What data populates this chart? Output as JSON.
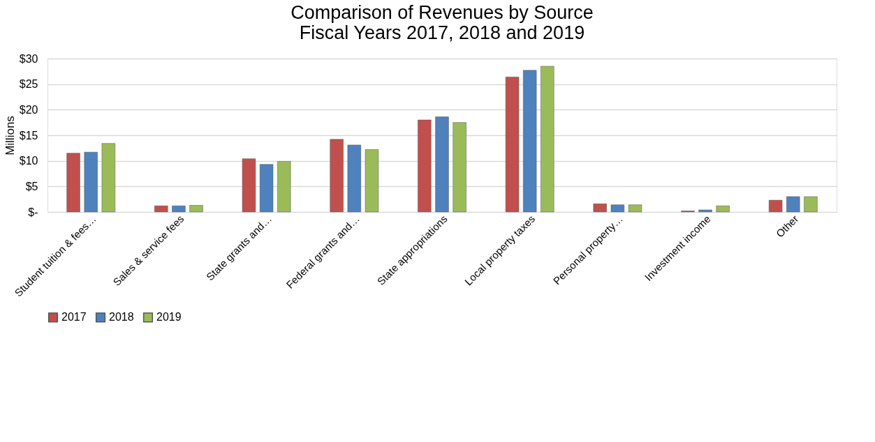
{
  "chart_data": {
    "type": "bar",
    "title": [
      "Comparison of Revenues by Source",
      "Fiscal Years 2017, 2018 and 2019"
    ],
    "ylabel": "Millions",
    "categories": [
      "Student tuition & fees…",
      "Sales & service fees",
      "State grants and…",
      "Federal grants and…",
      "State appropriations",
      "Local property taxes",
      "Personal property…",
      "Investment income",
      "Other"
    ],
    "series": [
      {
        "name": "2017",
        "color": "#c0504d",
        "values": [
          11.5,
          1.2,
          10.4,
          14.2,
          18.0,
          26.4,
          1.6,
          0.2,
          2.3
        ]
      },
      {
        "name": "2018",
        "color": "#4f81bd",
        "values": [
          11.7,
          1.2,
          9.3,
          13.1,
          18.6,
          27.7,
          1.4,
          0.4,
          3.0
        ]
      },
      {
        "name": "2019",
        "color": "#9bbb59",
        "values": [
          13.4,
          1.3,
          9.9,
          12.2,
          17.5,
          28.5,
          1.4,
          1.2,
          3.0
        ]
      }
    ],
    "ylim": [
      0,
      30
    ],
    "yticks": [
      {
        "value": 0,
        "label": "$-"
      },
      {
        "value": 5,
        "label": "$5"
      },
      {
        "value": 10,
        "label": "$10"
      },
      {
        "value": 15,
        "label": "$15"
      },
      {
        "value": 20,
        "label": "$20"
      },
      {
        "value": 25,
        "label": "$25"
      },
      {
        "value": 30,
        "label": "$30"
      }
    ],
    "grid": "y",
    "legend": "bottom"
  }
}
